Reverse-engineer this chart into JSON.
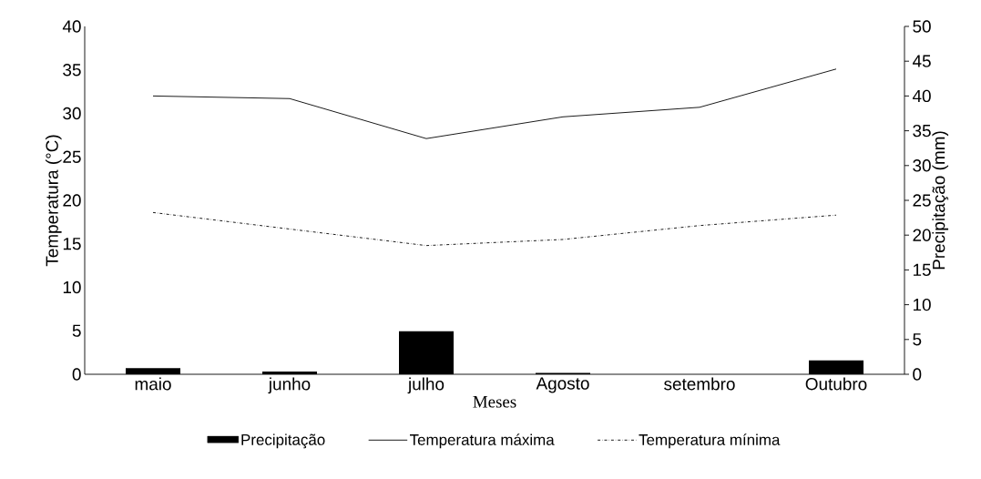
{
  "chart_data": {
    "type": "line",
    "xlabel": "Meses",
    "ylabel": "Temperatura (°C)",
    "y2label": "Precipitação (mm)",
    "categories": [
      "maio",
      "junho",
      "julho",
      "Agosto",
      "setembro",
      "Outubro"
    ],
    "series": [
      {
        "name": "Precipitação",
        "type": "bar",
        "axis": "y2",
        "color": "#000000",
        "values": [
          0.9,
          0.4,
          6.2,
          0.2,
          0,
          2.0
        ]
      },
      {
        "name": "Temperatura máxima",
        "color": "#000000",
        "line_style": "solid",
        "values": [
          32.0,
          31.7,
          27.1,
          29.6,
          30.7,
          35.1
        ]
      },
      {
        "name": "Temperatura mínima",
        "color": "#000000",
        "line_style": "dashed",
        "values": [
          18.6,
          16.7,
          14.8,
          15.5,
          17.1,
          18.3
        ]
      }
    ],
    "ylim": [
      0,
      40
    ],
    "yticks": [
      0,
      5,
      10,
      15,
      20,
      25,
      30,
      35,
      40
    ],
    "y2lim": [
      0,
      50
    ],
    "y2ticks": [
      0,
      5,
      10,
      15,
      20,
      25,
      30,
      35,
      40,
      45,
      50
    ],
    "grid": false,
    "legend": "bottom",
    "marker": "none"
  }
}
